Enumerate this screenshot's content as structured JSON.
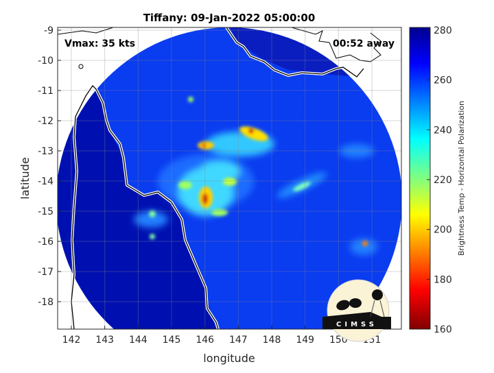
{
  "title": "Tiffany: 09-Jan-2022 05:00:00",
  "annotations": {
    "vmax": "Vmax: 35 kts",
    "time_away": "00:52 away"
  },
  "xlabel": "longitude",
  "ylabel": "latitude",
  "x_ticks": [
    "142",
    "143",
    "144",
    "145",
    "146",
    "147",
    "148",
    "149",
    "150",
    "151"
  ],
  "y_ticks": [
    "-9",
    "-10",
    "-11",
    "-12",
    "-13",
    "-14",
    "-15",
    "-16",
    "-17",
    "-18"
  ],
  "colorbar": {
    "label": "Brightness Temp - Horizontal Polarization",
    "ticks": [
      "280",
      "260",
      "240",
      "220",
      "200",
      "180",
      "160"
    ],
    "range": [
      160,
      280
    ],
    "colormap": "jet"
  },
  "logo": "CIMSS",
  "chart_data": {
    "type": "heatmap",
    "title": "Tiffany: 09-Jan-2022 05:00:00",
    "xlabel": "longitude",
    "ylabel": "latitude",
    "xlim": [
      141.6,
      151.9
    ],
    "ylim": [
      -18.9,
      -8.9
    ],
    "grid": true,
    "colorbar_range": [
      160,
      280
    ]
  }
}
